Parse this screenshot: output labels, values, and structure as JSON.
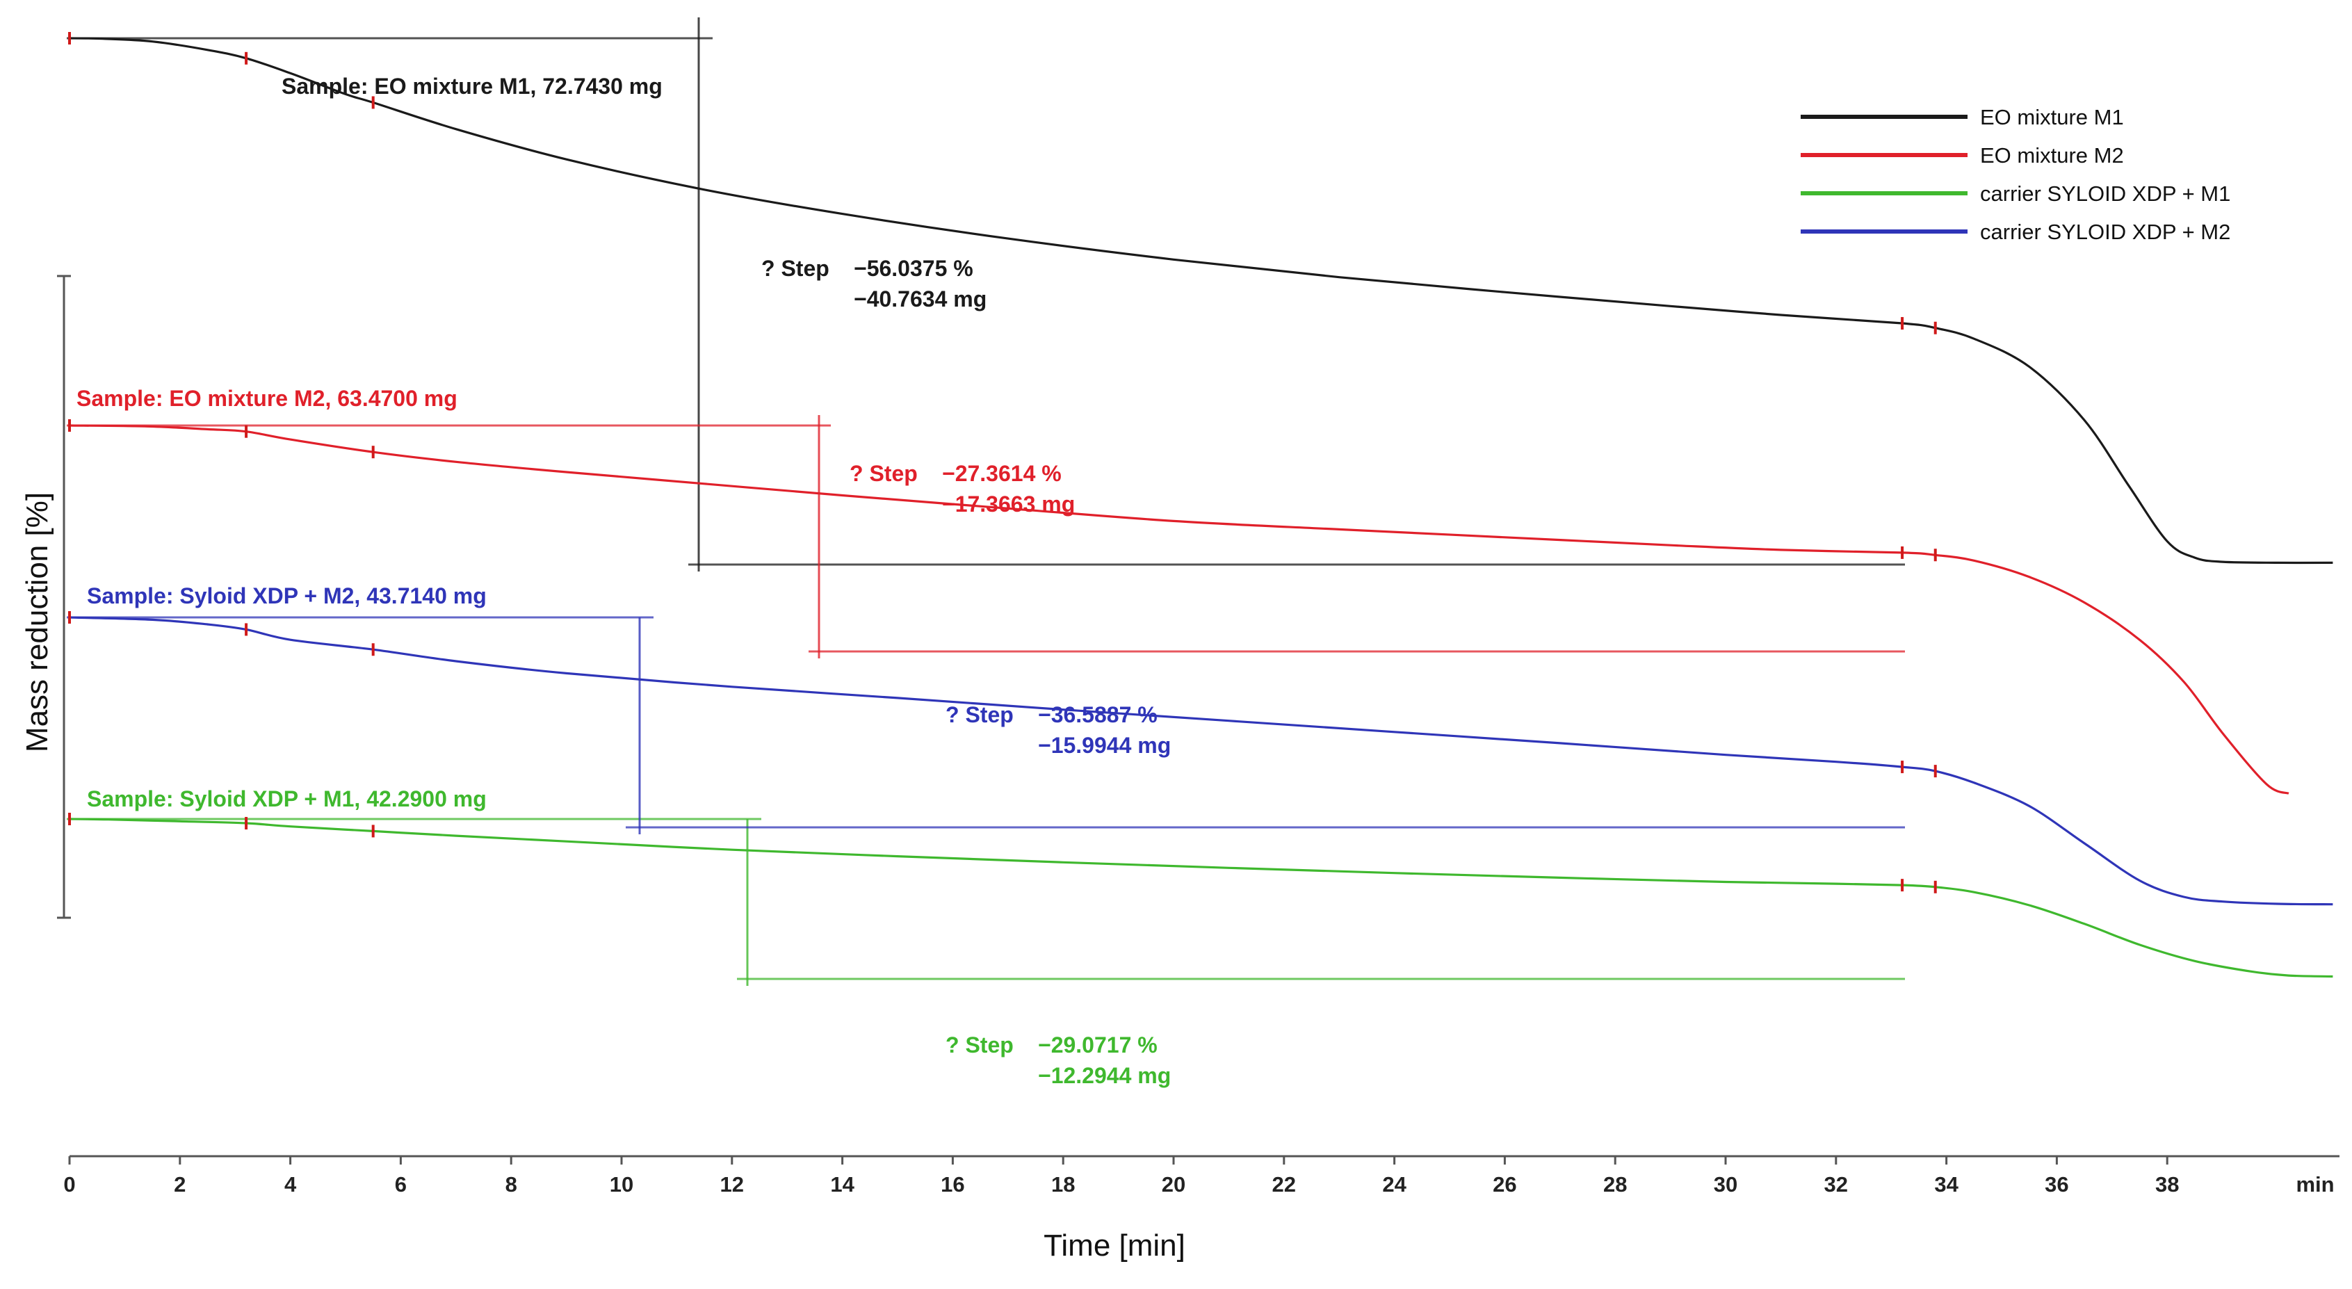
{
  "chart_data": {
    "type": "line",
    "title": "",
    "xlabel": "Time [min]",
    "ylabel": "Mass reduction [%]",
    "xlim": [
      0,
      41
    ],
    "x_unit_label": "min",
    "x_ticks": [
      "0",
      "2",
      "4",
      "6",
      "8",
      "10",
      "12",
      "14",
      "16",
      "18",
      "20",
      "22",
      "24",
      "26",
      "28",
      "30",
      "32",
      "34",
      "36",
      "38"
    ],
    "legend_position": "top-right",
    "colors": {
      "m1": "#1a1a1a",
      "m2": "#e0202a",
      "sy_m1": "#3fb82e",
      "sy_m2": "#2f35b8"
    },
    "series": [
      {
        "name": "EO mixture M1",
        "color_key": "m1",
        "sample_label": "Sample: EO mixture M1, 72.7430 mg",
        "step_label": "? Step",
        "step_percent": "−56.0375 %",
        "step_mg": "−40.7634 mg",
        "x": [
          0,
          0.6,
          1.5,
          2.5,
          3.2,
          4,
          5,
          5.5,
          7,
          9,
          11.5,
          14,
          17,
          20,
          23,
          26,
          29,
          31,
          33.2,
          33.8,
          34.5,
          35.5,
          36.5,
          37.3,
          38,
          38.5,
          39,
          40,
          41
        ],
        "y": [
          0,
          -0.1,
          -0.7,
          -2.5,
          -4.3,
          -7.5,
          -12,
          -13.8,
          -19.5,
          -26,
          -32.5,
          -37.7,
          -43,
          -47.5,
          -51.3,
          -54.5,
          -57.5,
          -59.4,
          -61.2,
          -62.2,
          -64.5,
          -70.5,
          -82,
          -96,
          -108,
          -111.5,
          -112.4,
          -112.6,
          -112.6
        ]
      },
      {
        "name": "EO mixture M2",
        "color_key": "m2",
        "sample_label": "Sample: EO mixture M2, 63.4700 mg",
        "step_label": "? Step",
        "step_percent": "−27.3614 %",
        "step_mg": "−17.3663 mg",
        "x": [
          0,
          1.4,
          2.5,
          3.2,
          4,
          5.5,
          7,
          9,
          11.5,
          14,
          17,
          20,
          23,
          26,
          29,
          31,
          33.2,
          33.8,
          34.5,
          35.5,
          36.5,
          37.5,
          38.3,
          39,
          39.8,
          40.2
        ],
        "y": [
          0,
          -0.2,
          -0.8,
          -1.3,
          -3,
          -5.7,
          -7.8,
          -10,
          -12.5,
          -15,
          -17.8,
          -20.5,
          -22.3,
          -24,
          -25.7,
          -26.7,
          -27.3,
          -27.8,
          -29,
          -32.5,
          -38,
          -46,
          -55,
          -66,
          -77,
          -79
        ]
      },
      {
        "name": "carrier SYLOID XDP + M1",
        "color_key": "sy_m1",
        "sample_label": "Sample: Syloid XDP + M1, 42.2900 mg",
        "step_label": "? Step",
        "step_percent": "−29.0717 %",
        "step_mg": "−12.2944 mg",
        "x": [
          0,
          0.7,
          2,
          3.2,
          4,
          5.5,
          7,
          9,
          12,
          15,
          18,
          21,
          24,
          27,
          30,
          32,
          33.2,
          33.8,
          34.5,
          35.5,
          36.5,
          37.5,
          38.5,
          39.5,
          40.2,
          41
        ],
        "y": [
          0,
          -0.1,
          -0.5,
          -0.9,
          -1.6,
          -2.6,
          -3.6,
          -4.8,
          -6.6,
          -8,
          -9.3,
          -10.5,
          -11.6,
          -12.6,
          -13.5,
          -13.9,
          -14.2,
          -14.6,
          -15.7,
          -18.5,
          -22.5,
          -27,
          -30.5,
          -32.7,
          -33.6,
          -33.8
        ]
      },
      {
        "name": "carrier SYLOID XDP + M2",
        "color_key": "sy_m2",
        "sample_label": "Sample: Syloid XDP + M2, 43.7140 mg",
        "step_label": "? Step",
        "step_percent": "−36.5887 %",
        "step_mg": "−15.9944 mg",
        "x": [
          0,
          1.5,
          2.5,
          3.2,
          4,
          5.5,
          7,
          9,
          12,
          15,
          18,
          21,
          24,
          27,
          30,
          32,
          33.2,
          33.8,
          34.5,
          35.5,
          36.5,
          37.5,
          38.3,
          39,
          40,
          41
        ],
        "y": [
          0,
          -0.5,
          -1.5,
          -2.6,
          -4.8,
          -6.9,
          -9.4,
          -12,
          -14.9,
          -17.3,
          -19.8,
          -22.2,
          -24.6,
          -27,
          -29.5,
          -31,
          -32.1,
          -33,
          -35.5,
          -40.5,
          -48.5,
          -56.5,
          -60,
          -61,
          -61.5,
          -61.6
        ]
      }
    ]
  }
}
